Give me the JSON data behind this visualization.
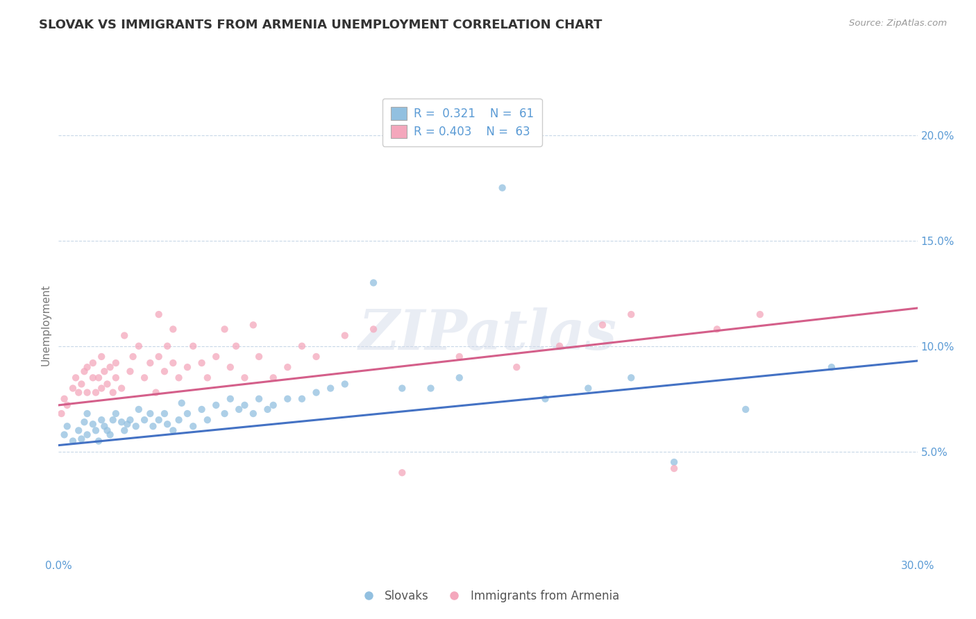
{
  "title": "SLOVAK VS IMMIGRANTS FROM ARMENIA UNEMPLOYMENT CORRELATION CHART",
  "source_text": "Source: ZipAtlas.com",
  "ylabel": "Unemployment",
  "xlim": [
    0.0,
    0.3
  ],
  "ylim": [
    0.0,
    0.22
  ],
  "xticks": [
    0.0,
    0.05,
    0.1,
    0.15,
    0.2,
    0.25,
    0.3
  ],
  "yticks_right": [
    0.05,
    0.1,
    0.15,
    0.2
  ],
  "ytick_labels_right": [
    "5.0%",
    "10.0%",
    "15.0%",
    "20.0%"
  ],
  "blue_color": "#92c0e0",
  "pink_color": "#f4a7bc",
  "blue_line_color": "#4472c4",
  "pink_line_color": "#d45f8a",
  "title_color": "#333333",
  "axis_label_color": "#5b9bd5",
  "watermark": "ZIPatlas",
  "background_color": "#ffffff",
  "grid_color": "#c8d8e8",
  "slovaks_x": [
    0.002,
    0.003,
    0.005,
    0.007,
    0.008,
    0.009,
    0.01,
    0.01,
    0.012,
    0.013,
    0.014,
    0.015,
    0.016,
    0.017,
    0.018,
    0.019,
    0.02,
    0.022,
    0.023,
    0.024,
    0.025,
    0.027,
    0.028,
    0.03,
    0.032,
    0.033,
    0.035,
    0.037,
    0.038,
    0.04,
    0.042,
    0.043,
    0.045,
    0.047,
    0.05,
    0.052,
    0.055,
    0.058,
    0.06,
    0.063,
    0.065,
    0.068,
    0.07,
    0.073,
    0.075,
    0.08,
    0.085,
    0.09,
    0.095,
    0.1,
    0.11,
    0.12,
    0.13,
    0.14,
    0.155,
    0.17,
    0.185,
    0.2,
    0.215,
    0.24,
    0.27
  ],
  "slovaks_y": [
    0.058,
    0.062,
    0.055,
    0.06,
    0.056,
    0.064,
    0.058,
    0.068,
    0.063,
    0.06,
    0.055,
    0.065,
    0.062,
    0.06,
    0.058,
    0.065,
    0.068,
    0.064,
    0.06,
    0.063,
    0.065,
    0.062,
    0.07,
    0.065,
    0.068,
    0.062,
    0.065,
    0.068,
    0.063,
    0.06,
    0.065,
    0.073,
    0.068,
    0.062,
    0.07,
    0.065,
    0.072,
    0.068,
    0.075,
    0.07,
    0.072,
    0.068,
    0.075,
    0.07,
    0.072,
    0.075,
    0.075,
    0.078,
    0.08,
    0.082,
    0.13,
    0.08,
    0.08,
    0.085,
    0.175,
    0.075,
    0.08,
    0.085,
    0.045,
    0.07,
    0.09
  ],
  "armenia_x": [
    0.001,
    0.002,
    0.003,
    0.005,
    0.006,
    0.007,
    0.008,
    0.009,
    0.01,
    0.01,
    0.012,
    0.012,
    0.013,
    0.014,
    0.015,
    0.015,
    0.016,
    0.017,
    0.018,
    0.019,
    0.02,
    0.02,
    0.022,
    0.023,
    0.025,
    0.026,
    0.028,
    0.03,
    0.032,
    0.034,
    0.035,
    0.035,
    0.037,
    0.038,
    0.04,
    0.04,
    0.042,
    0.045,
    0.047,
    0.05,
    0.052,
    0.055,
    0.058,
    0.06,
    0.062,
    0.065,
    0.068,
    0.07,
    0.075,
    0.08,
    0.085,
    0.09,
    0.1,
    0.11,
    0.12,
    0.14,
    0.16,
    0.175,
    0.19,
    0.2,
    0.215,
    0.23,
    0.245
  ],
  "armenia_y": [
    0.068,
    0.075,
    0.072,
    0.08,
    0.085,
    0.078,
    0.082,
    0.088,
    0.078,
    0.09,
    0.085,
    0.092,
    0.078,
    0.085,
    0.08,
    0.095,
    0.088,
    0.082,
    0.09,
    0.078,
    0.085,
    0.092,
    0.08,
    0.105,
    0.088,
    0.095,
    0.1,
    0.085,
    0.092,
    0.078,
    0.095,
    0.115,
    0.088,
    0.1,
    0.092,
    0.108,
    0.085,
    0.09,
    0.1,
    0.092,
    0.085,
    0.095,
    0.108,
    0.09,
    0.1,
    0.085,
    0.11,
    0.095,
    0.085,
    0.09,
    0.1,
    0.095,
    0.105,
    0.108,
    0.04,
    0.095,
    0.09,
    0.1,
    0.11,
    0.115,
    0.042,
    0.108,
    0.115
  ],
  "blue_trend_x": [
    0.0,
    0.3
  ],
  "blue_trend_y": [
    0.053,
    0.093
  ],
  "pink_trend_x": [
    0.0,
    0.3
  ],
  "pink_trend_y": [
    0.072,
    0.118
  ]
}
